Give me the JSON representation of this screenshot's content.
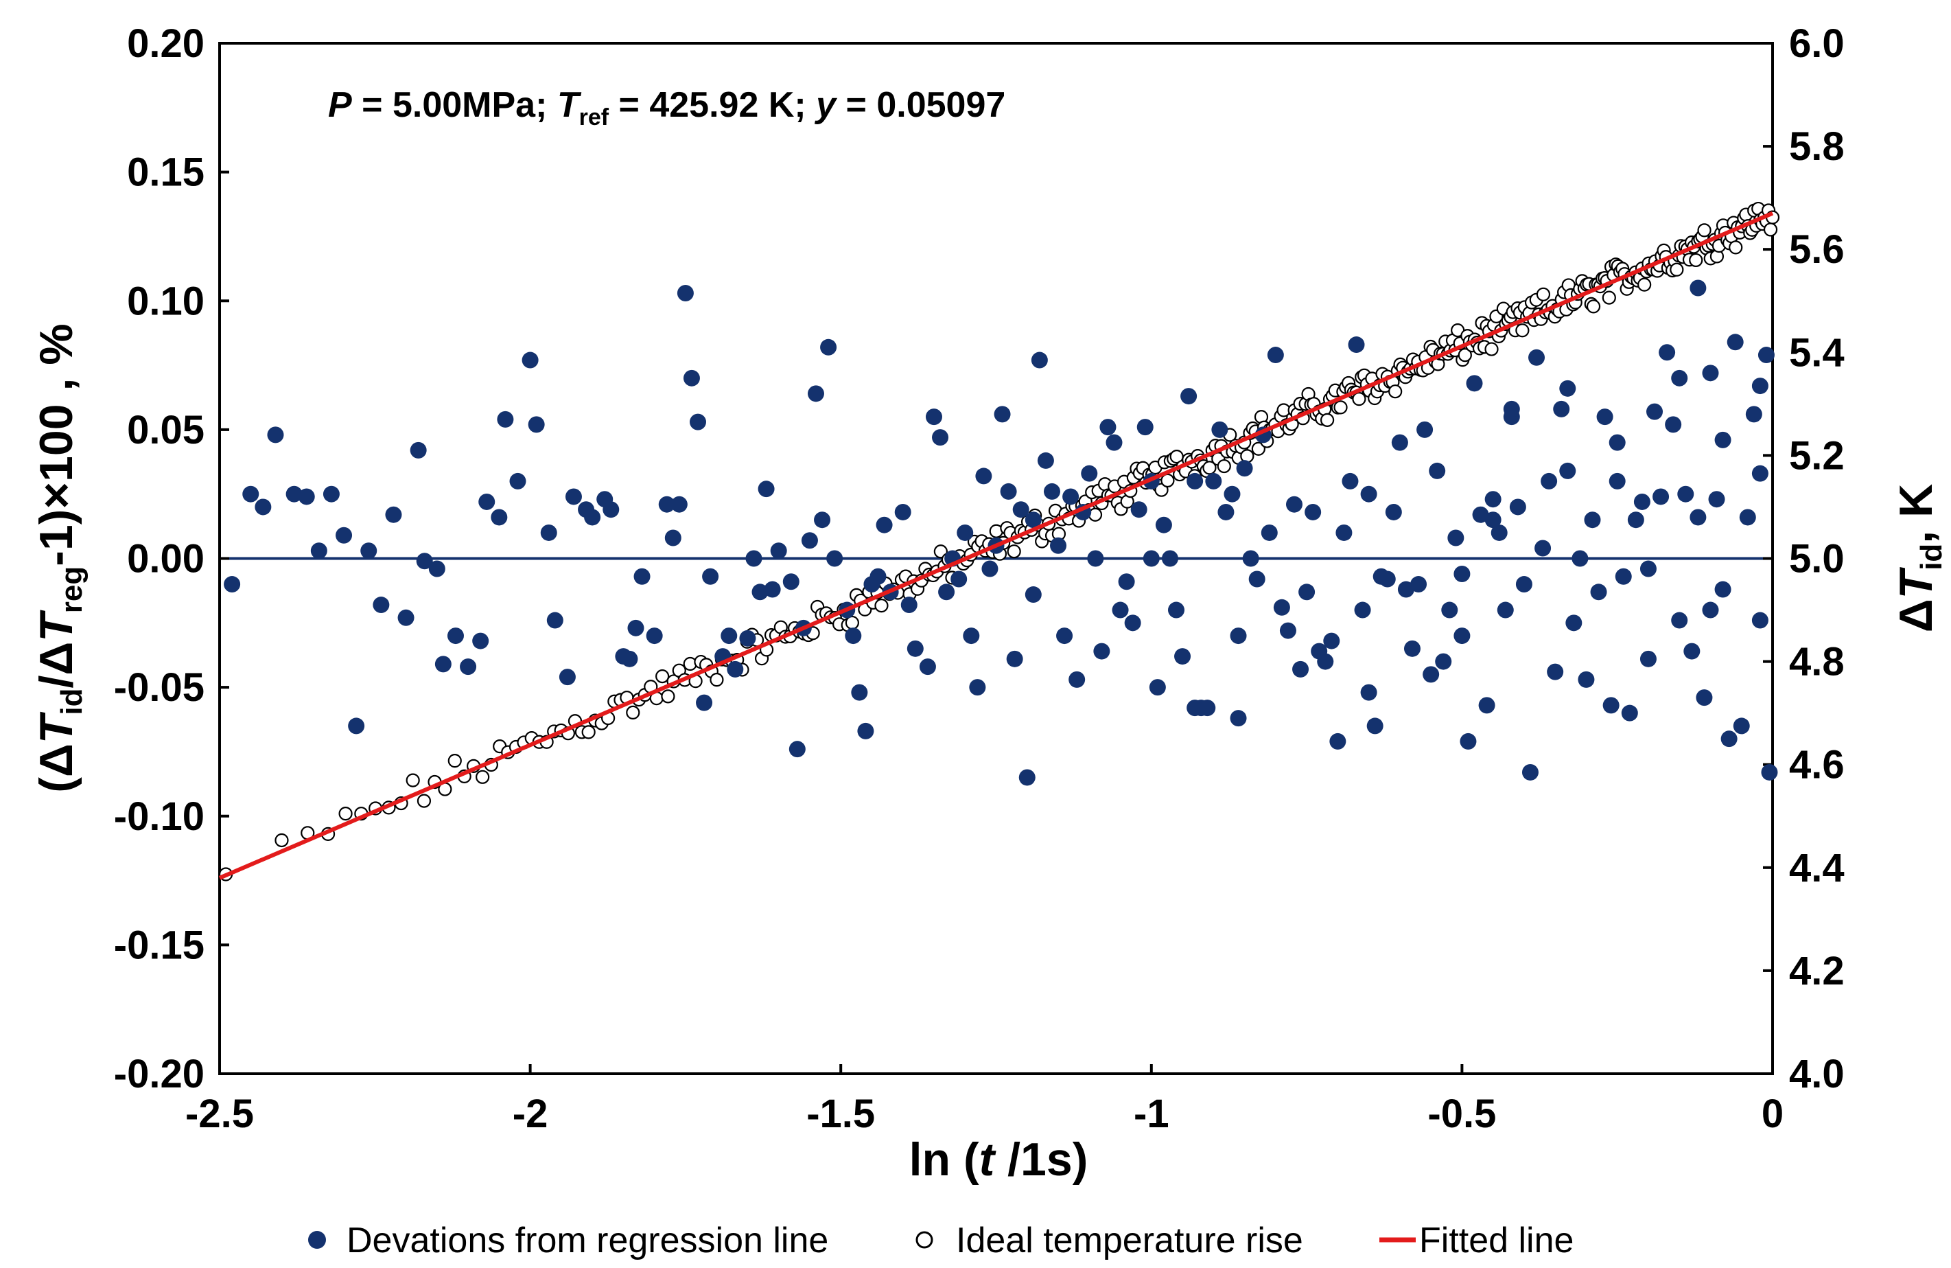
{
  "chart_data": {
    "type": "scatter",
    "annotation": {
      "p_sym": "P",
      "p_text": " = 5.00MPa; ",
      "t_sym": "T",
      "t_sub": "ref",
      "t_text": " = 425.92 K; ",
      "y_sym": "y",
      "y_text": " = 0.05097"
    },
    "x_axis": {
      "label_prefix": "ln (",
      "label_var": "t",
      "label_suffix": " /1s)",
      "range": [
        -2.5,
        0
      ],
      "ticks": [
        -2.5,
        -2,
        -1.5,
        -1,
        -0.5,
        0
      ],
      "tick_labels": [
        "-2.5",
        "-2",
        "-1.5",
        "-1",
        "-0.5",
        "0"
      ]
    },
    "y_left_axis": {
      "label_open": "(Δ",
      "label_t1": "T",
      "label_sub1": "id",
      "label_mid": "/Δ",
      "label_t2": "T",
      "label_sub2": "reg",
      "label_close": "-1)×100 , %",
      "range": [
        -0.2,
        0.2
      ],
      "tick_labels": [
        "0.20",
        "0.15",
        "0.10",
        "0.05",
        "0.00",
        "-0.05",
        "-0.10",
        "-0.15",
        "-0.20"
      ]
    },
    "y_right_axis": {
      "label_delta": "Δ",
      "label_t": "T",
      "label_sub": "id",
      "label_unit": ", K",
      "range": [
        4.0,
        6.0
      ],
      "tick_labels": [
        "6.0",
        "5.8",
        "5.6",
        "5.4",
        "5.2",
        "5.0",
        "4.8",
        "4.6",
        "4.4",
        "4.2",
        "4.0"
      ]
    },
    "zero_line": 0.0,
    "fitted_line": {
      "x": [
        -2.5,
        0
      ],
      "y": [
        4.38,
        5.67
      ],
      "axis": "right"
    },
    "series": [
      {
        "name": "Devations from regression line",
        "axis": "left",
        "marker": "filled-circle",
        "color": "#14326e",
        "points": [
          [
            -2.48,
            -0.01
          ],
          [
            -2.45,
            0.025
          ],
          [
            -2.43,
            0.02
          ],
          [
            -2.41,
            0.048
          ],
          [
            -2.38,
            0.025
          ],
          [
            -2.36,
            0.024
          ],
          [
            -2.34,
            0.003
          ],
          [
            -2.32,
            0.025
          ],
          [
            -2.3,
            0.009
          ],
          [
            -2.28,
            -0.065
          ],
          [
            -2.26,
            0.003
          ],
          [
            -2.24,
            -0.018
          ],
          [
            -2.22,
            0.017
          ],
          [
            -2.2,
            -0.023
          ],
          [
            -2.18,
            0.042
          ],
          [
            -2.17,
            -0.001
          ],
          [
            -2.15,
            -0.004
          ],
          [
            -2.14,
            -0.041
          ],
          [
            -2.12,
            -0.03
          ],
          [
            -2.1,
            -0.042
          ],
          [
            -2.08,
            -0.032
          ],
          [
            -2.07,
            0.022
          ],
          [
            -2.05,
            0.016
          ],
          [
            -2.04,
            0.054
          ],
          [
            -2.02,
            0.03
          ],
          [
            -2.0,
            0.077
          ],
          [
            -1.99,
            0.052
          ],
          [
            -1.97,
            0.01
          ],
          [
            -1.96,
            -0.024
          ],
          [
            -1.94,
            -0.046
          ],
          [
            -1.93,
            0.024
          ],
          [
            -1.91,
            0.019
          ],
          [
            -1.9,
            0.016
          ],
          [
            -1.88,
            0.023
          ],
          [
            -1.87,
            0.019
          ],
          [
            -1.85,
            -0.038
          ],
          [
            -1.84,
            -0.039
          ],
          [
            -1.83,
            -0.027
          ],
          [
            -1.82,
            -0.007
          ],
          [
            -1.8,
            -0.03
          ],
          [
            -1.78,
            0.021
          ],
          [
            -1.77,
            0.008
          ],
          [
            -1.76,
            0.021
          ],
          [
            -1.75,
            0.103
          ],
          [
            -1.74,
            0.07
          ],
          [
            -1.73,
            0.053
          ],
          [
            -1.72,
            -0.056
          ],
          [
            -1.71,
            -0.007
          ],
          [
            -1.69,
            -0.038
          ],
          [
            -1.68,
            -0.03
          ],
          [
            -1.67,
            -0.043
          ],
          [
            -1.65,
            -0.031
          ],
          [
            -1.64,
            0.0
          ],
          [
            -1.63,
            -0.013
          ],
          [
            -1.62,
            0.027
          ],
          [
            -1.61,
            -0.012
          ],
          [
            -1.6,
            0.003
          ],
          [
            -1.58,
            -0.009
          ],
          [
            -1.57,
            -0.074
          ],
          [
            -1.56,
            -0.027
          ],
          [
            -1.55,
            0.007
          ],
          [
            -1.54,
            0.064
          ],
          [
            -1.53,
            0.015
          ],
          [
            -1.52,
            0.082
          ],
          [
            -1.51,
            0.0
          ],
          [
            -1.49,
            -0.02
          ],
          [
            -1.48,
            -0.03
          ],
          [
            -1.47,
            -0.052
          ],
          [
            -1.46,
            -0.067
          ],
          [
            -1.45,
            -0.01
          ],
          [
            -1.44,
            -0.007
          ],
          [
            -1.43,
            0.013
          ],
          [
            -1.42,
            -0.013
          ],
          [
            -1.4,
            0.018
          ],
          [
            -1.39,
            -0.018
          ],
          [
            -1.38,
            -0.035
          ],
          [
            -1.36,
            -0.042
          ],
          [
            -1.35,
            0.055
          ],
          [
            -1.34,
            0.047
          ],
          [
            -1.33,
            -0.013
          ],
          [
            -1.32,
            0.0
          ],
          [
            -1.31,
            -0.008
          ],
          [
            -1.3,
            0.01
          ],
          [
            -1.29,
            -0.03
          ],
          [
            -1.28,
            -0.05
          ],
          [
            -1.27,
            0.032
          ],
          [
            -1.26,
            -0.004
          ],
          [
            -1.25,
            0.005
          ],
          [
            -1.24,
            0.056
          ],
          [
            -1.23,
            0.026
          ],
          [
            -1.22,
            -0.039
          ],
          [
            -1.21,
            0.019
          ],
          [
            -1.2,
            -0.085
          ],
          [
            -1.19,
            0.015
          ],
          [
            -1.18,
            0.077
          ],
          [
            -1.17,
            0.038
          ],
          [
            -1.16,
            0.026
          ],
          [
            -1.15,
            0.005
          ],
          [
            -1.14,
            -0.03
          ],
          [
            -1.13,
            0.024
          ],
          [
            -1.12,
            -0.047
          ],
          [
            -1.11,
            0.018
          ],
          [
            -1.1,
            0.033
          ],
          [
            -1.09,
            0.0
          ],
          [
            -1.08,
            -0.036
          ],
          [
            -1.07,
            0.051
          ],
          [
            -1.06,
            0.045
          ],
          [
            -1.05,
            -0.02
          ],
          [
            -1.04,
            -0.009
          ],
          [
            -1.03,
            -0.025
          ],
          [
            -1.02,
            0.019
          ],
          [
            -1.01,
            0.051
          ],
          [
            -1.0,
            0.03
          ],
          [
            -0.99,
            -0.05
          ],
          [
            -0.98,
            0.013
          ],
          [
            -0.97,
            0.0
          ],
          [
            -0.96,
            -0.02
          ],
          [
            -0.95,
            -0.038
          ],
          [
            -0.94,
            0.063
          ],
          [
            -0.93,
            0.03
          ],
          [
            -0.92,
            -0.058
          ],
          [
            -0.91,
            -0.058
          ],
          [
            -0.9,
            0.03
          ],
          [
            -0.89,
            0.05
          ],
          [
            -0.88,
            0.018
          ],
          [
            -0.87,
            0.025
          ],
          [
            -0.86,
            -0.062
          ],
          [
            -0.85,
            0.035
          ],
          [
            -0.84,
            0.0
          ],
          [
            -0.83,
            -0.008
          ],
          [
            -0.82,
            0.048
          ],
          [
            -0.81,
            0.01
          ],
          [
            -0.8,
            0.079
          ],
          [
            -0.79,
            -0.019
          ],
          [
            -0.78,
            -0.028
          ],
          [
            -0.77,
            0.021
          ],
          [
            -0.76,
            -0.043
          ],
          [
            -0.75,
            -0.013
          ],
          [
            -0.74,
            0.018
          ],
          [
            -0.73,
            -0.036
          ],
          [
            -0.72,
            -0.04
          ],
          [
            -0.71,
            -0.032
          ],
          [
            -0.7,
            -0.071
          ],
          [
            -0.69,
            0.01
          ],
          [
            -0.68,
            0.03
          ],
          [
            -0.67,
            0.083
          ],
          [
            -0.66,
            -0.02
          ],
          [
            -0.65,
            -0.052
          ],
          [
            -0.64,
            -0.065
          ],
          [
            -0.63,
            -0.007
          ],
          [
            -0.62,
            -0.008
          ],
          [
            -0.61,
            0.018
          ],
          [
            -0.6,
            0.045
          ],
          [
            -0.59,
            -0.012
          ],
          [
            -0.58,
            -0.035
          ],
          [
            -0.57,
            -0.01
          ],
          [
            -0.56,
            0.05
          ],
          [
            -0.55,
            -0.045
          ],
          [
            -0.54,
            0.034
          ],
          [
            -0.53,
            -0.04
          ],
          [
            -0.52,
            -0.02
          ],
          [
            -0.51,
            0.008
          ],
          [
            -0.5,
            -0.03
          ],
          [
            -0.49,
            -0.071
          ],
          [
            -0.48,
            0.068
          ],
          [
            -0.47,
            0.017
          ],
          [
            -0.46,
            -0.057
          ],
          [
            -0.45,
            0.015
          ],
          [
            -0.44,
            0.01
          ],
          [
            -0.43,
            -0.02
          ],
          [
            -0.42,
            0.055
          ],
          [
            -0.41,
            0.02
          ],
          [
            -0.4,
            -0.01
          ],
          [
            -0.39,
            -0.083
          ],
          [
            -0.38,
            0.078
          ],
          [
            -0.37,
            0.004
          ],
          [
            -0.36,
            0.03
          ],
          [
            -0.35,
            -0.044
          ],
          [
            -0.34,
            0.058
          ],
          [
            -0.33,
            0.034
          ],
          [
            -0.32,
            -0.025
          ],
          [
            -0.31,
            0.0
          ],
          [
            -0.3,
            -0.047
          ],
          [
            -0.29,
            0.015
          ],
          [
            -0.28,
            -0.013
          ],
          [
            -0.27,
            0.055
          ],
          [
            -0.26,
            -0.057
          ],
          [
            -0.25,
            0.03
          ],
          [
            -0.24,
            -0.007
          ],
          [
            -0.23,
            -0.06
          ],
          [
            -0.22,
            0.015
          ],
          [
            -0.21,
            0.022
          ],
          [
            -0.2,
            -0.039
          ],
          [
            -0.19,
            0.057
          ],
          [
            -0.18,
            0.024
          ],
          [
            -0.17,
            0.08
          ],
          [
            -0.16,
            0.052
          ],
          [
            -0.15,
            -0.024
          ],
          [
            -0.14,
            0.025
          ],
          [
            -0.13,
            -0.036
          ],
          [
            -0.12,
            0.016
          ],
          [
            -0.11,
            -0.054
          ],
          [
            -0.1,
            0.072
          ],
          [
            -0.09,
            0.023
          ],
          [
            -0.08,
            -0.012
          ],
          [
            -0.07,
            -0.07
          ],
          [
            -0.06,
            0.084
          ],
          [
            -0.05,
            -0.065
          ],
          [
            -0.04,
            0.016
          ],
          [
            -0.03,
            0.056
          ],
          [
            -0.02,
            -0.024
          ],
          [
            -0.01,
            0.079
          ],
          [
            -0.005,
            -0.083
          ],
          [
            -0.12,
            0.105
          ],
          [
            -0.33,
            0.066
          ],
          [
            -0.15,
            0.07
          ],
          [
            -0.08,
            0.046
          ],
          [
            -0.02,
            0.067
          ],
          [
            -0.25,
            0.045
          ],
          [
            -0.42,
            0.058
          ],
          [
            -0.65,
            0.025
          ],
          [
            -0.02,
            0.033
          ],
          [
            -0.86,
            -0.03
          ],
          [
            -0.93,
            -0.058
          ],
          [
            -1.19,
            -0.014
          ],
          [
            -1.0,
            0.0
          ],
          [
            -0.5,
            -0.006
          ],
          [
            -0.45,
            0.023
          ],
          [
            -0.2,
            -0.004
          ],
          [
            -0.1,
            -0.02
          ]
        ]
      },
      {
        "name": "Ideal temperature rise",
        "axis": "right",
        "marker": "open-circle",
        "color": "#000000",
        "generator": "5.67 + 0.516*x plus scatter, x from -2.49 to 0"
      },
      {
        "name": "Fitted line",
        "axis": "right",
        "marker": "line",
        "color": "#e31b1b"
      }
    ],
    "legend_position": "bottom-center"
  }
}
